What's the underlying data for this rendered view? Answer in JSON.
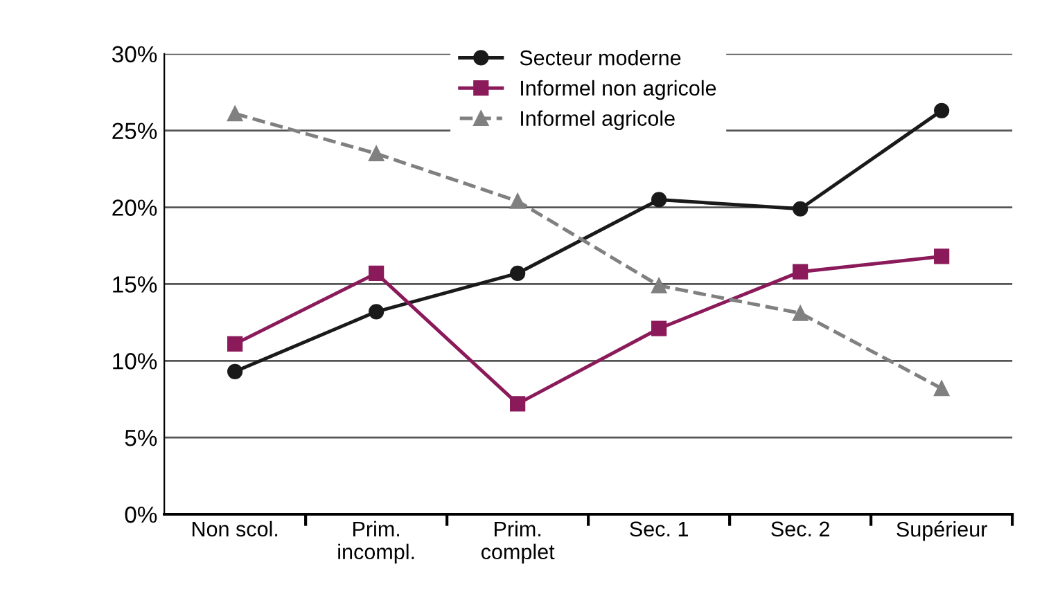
{
  "chart_data": {
    "type": "line",
    "categories": [
      "Non scol.",
      "Prim.\nincompl.",
      "Prim.\ncomplet",
      "Sec. 1",
      "Sec. 2",
      "Supérieur"
    ],
    "series": [
      {
        "name": "Secteur moderne",
        "color": "#1a1a1a",
        "marker": "circle",
        "line_style": "solid",
        "values": [
          9.3,
          13.2,
          15.7,
          20.5,
          19.9,
          26.3
        ]
      },
      {
        "name": "Informel non agricole",
        "color": "#8b1a5a",
        "marker": "square",
        "line_style": "solid",
        "values": [
          11.1,
          15.7,
          7.2,
          12.1,
          15.8,
          16.8
        ]
      },
      {
        "name": "Informel agricole",
        "color": "#808080",
        "marker": "triangle",
        "line_style": "dashed",
        "values": [
          26.1,
          23.5,
          20.4,
          14.9,
          13.1,
          8.2
        ]
      }
    ],
    "ylim": [
      0,
      30
    ],
    "yticks": [
      {
        "value": 0,
        "label": "0%"
      },
      {
        "value": 5,
        "label": "5%"
      },
      {
        "value": 10,
        "label": "10%"
      },
      {
        "value": 15,
        "label": "15%"
      },
      {
        "value": 20,
        "label": "20%"
      },
      {
        "value": 25,
        "label": "25%"
      },
      {
        "value": 30,
        "label": "30%"
      }
    ],
    "grid": "y",
    "legend": "top"
  }
}
